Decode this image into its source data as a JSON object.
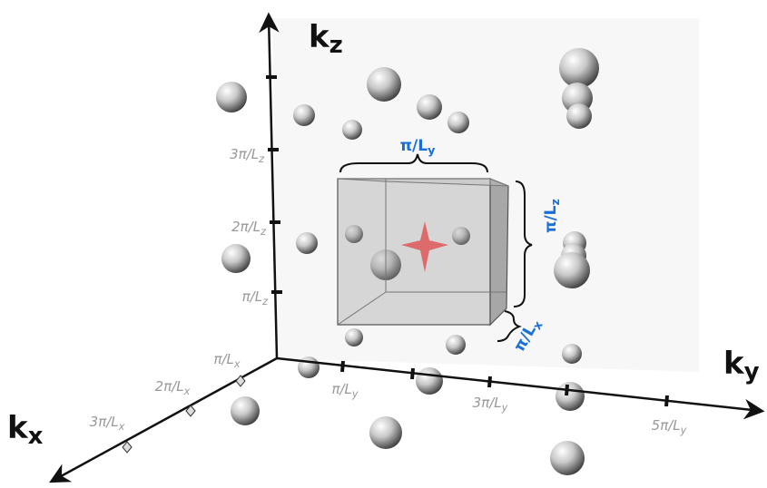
{
  "axes": {
    "kz": {
      "main": "k",
      "sub": "z"
    },
    "ky": {
      "main": "k",
      "sub": "y"
    },
    "kx": {
      "main": "k",
      "sub": "x"
    }
  },
  "kz_ticks": [
    {
      "main": "π/L",
      "sub": "z"
    },
    {
      "main": "2π/L",
      "sub": "z"
    },
    {
      "main": "3π/L",
      "sub": "z"
    }
  ],
  "ky_ticks": [
    {
      "main": "π/L",
      "sub": "y"
    },
    {
      "main": "3π/L",
      "sub": "y"
    },
    {
      "main": "5π/L",
      "sub": "y"
    }
  ],
  "kx_ticks": [
    {
      "main": "π/L",
      "sub": "x"
    },
    {
      "main": "2π/L",
      "sub": "x"
    },
    {
      "main": "3π/L",
      "sub": "x"
    }
  ],
  "cell": {
    "width_y": {
      "main": "π/L",
      "sub": "y"
    },
    "height_z": {
      "main": "π/L",
      "sub": "z"
    },
    "depth_x": {
      "main": "π/L",
      "sub": "x"
    }
  }
}
